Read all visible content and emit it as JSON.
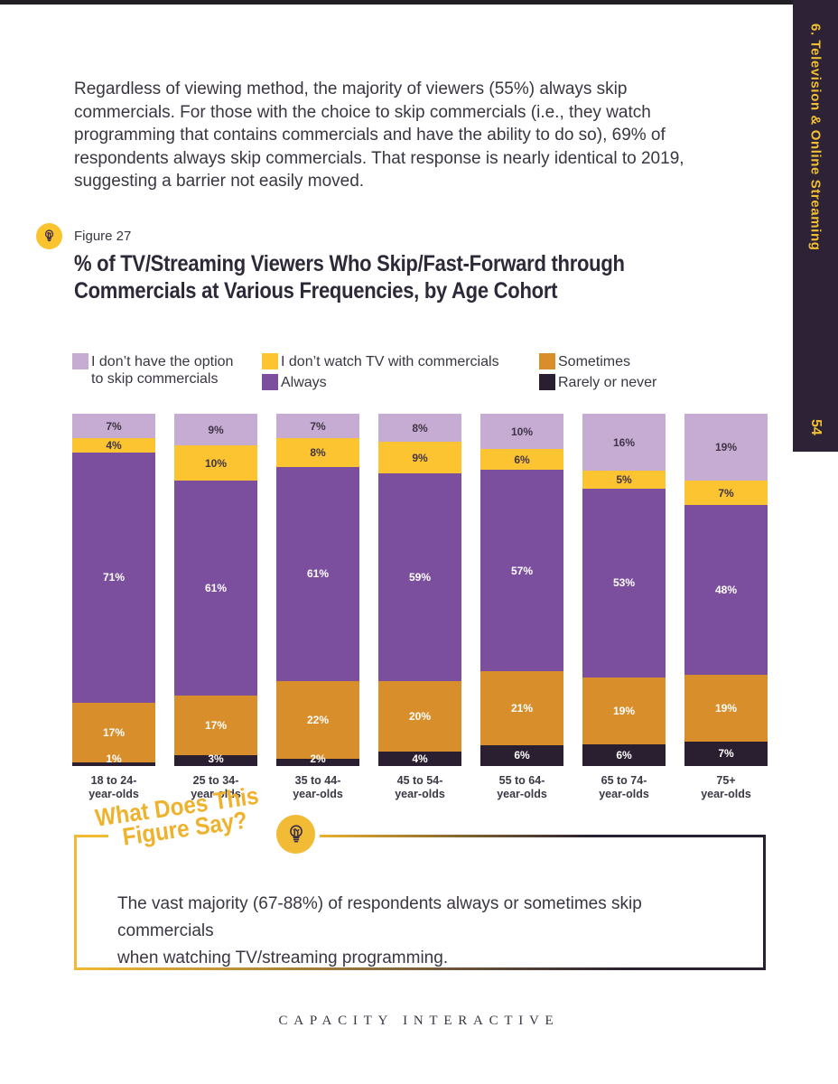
{
  "page": {
    "top_strip_color": "#211e24",
    "background": "#ffffff"
  },
  "sidebar": {
    "chapter_label": "6. Television & Online Streaming",
    "page_number": "54",
    "bg_color": "#2e2236",
    "text_color": "#f0c032"
  },
  "intro": {
    "text": "Regardless of viewing method, the majority of viewers (55%) always skip\ncommercials. For those with the choice to skip commercials (i.e., they watch\nprogramming that contains commercials and have the ability to do so), 69% of\nrespondents always skip commercials. That response is nearly identical to 2019,\nsuggesting a barrier not easily moved."
  },
  "figure": {
    "label": "Figure 27",
    "title_line1": "% of TV/Streaming Viewers Who Skip/Fast-Forward through",
    "title_line2": "Commercials at Various Frequencies, by Age Cohort"
  },
  "chart_data": {
    "type": "bar",
    "stacked": true,
    "unit": "%",
    "ylim": [
      0,
      100
    ],
    "grid": false,
    "legend_position": "top",
    "title": "% of TV/Streaming Viewers Who Skip/Fast-Forward through Commercials at Various Frequencies, by Age Cohort",
    "categories": [
      {
        "line1": "18 to 24-",
        "line2": "year-olds"
      },
      {
        "line1": "25 to 34-",
        "line2": "year-olds"
      },
      {
        "line1": "35 to 44-",
        "line2": "year-olds"
      },
      {
        "line1": "45 to 54-",
        "line2": "year-olds"
      },
      {
        "line1": "55 to 64-",
        "line2": "year-olds"
      },
      {
        "line1": "65 to 74-",
        "line2": "year-olds"
      },
      {
        "line1": "75+",
        "line2": "year-olds"
      }
    ],
    "series": [
      {
        "name": "I don’t have the option to skip commercials",
        "legend_label": "I don’t have the option\nto skip commercials",
        "color": "#c6abd2",
        "label_color": "#3f3447",
        "values": [
          7,
          9,
          7,
          8,
          10,
          16,
          19
        ]
      },
      {
        "name": "I don’t watch TV with commercials",
        "legend_label": "I don’t watch TV with commercials",
        "color": "#fcc431",
        "label_color": "#3f3447",
        "values": [
          4,
          10,
          8,
          9,
          6,
          5,
          7
        ]
      },
      {
        "name": "Always",
        "legend_label": "Always",
        "color": "#7b4f9e",
        "label_color": "#ffffff",
        "values": [
          71,
          61,
          61,
          59,
          57,
          53,
          48
        ]
      },
      {
        "name": "Sometimes",
        "legend_label": "Sometimes",
        "color": "#d88e2b",
        "label_color": "#ffffff",
        "values": [
          17,
          17,
          22,
          20,
          21,
          19,
          19
        ]
      },
      {
        "name": "Rarely or never",
        "legend_label": "Rarely or never",
        "color": "#2a1f30",
        "label_color": "#ffffff",
        "values": [
          1,
          3,
          2,
          4,
          6,
          6,
          7
        ]
      }
    ],
    "legend_columns": [
      [
        0
      ],
      [
        1,
        2
      ],
      [
        3,
        4
      ]
    ]
  },
  "callout": {
    "title_line1": "What Does This",
    "title_line2": "Figure Say?",
    "body": "The vast majority (67-88%) of respondents always or sometimes skip commercials\nwhen watching TV/streaming programming.",
    "accent_color": "#efb22d"
  },
  "footer": {
    "brand": "CAPACITY INTERACTIVE"
  }
}
